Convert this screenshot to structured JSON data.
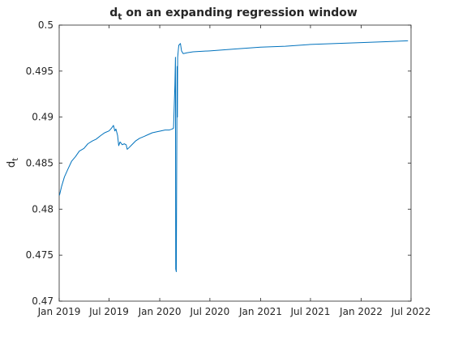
{
  "chart_data": {
    "type": "line",
    "title": "d",
    "title_subscript": "t",
    "title_rest": " on an expanding regression window",
    "xlabel": "",
    "ylabel": "d",
    "ylabel_subscript": "t",
    "ylim": [
      0.47,
      0.5
    ],
    "xlim": [
      "2019-01-01",
      "2022-07-01"
    ],
    "x_ticks": [
      {
        "date": "2019-01-01",
        "label": "Jan 2019"
      },
      {
        "date": "2019-07-01",
        "label": "Jul 2019"
      },
      {
        "date": "2020-01-01",
        "label": "Jan 2020"
      },
      {
        "date": "2020-07-01",
        "label": "Jul 2020"
      },
      {
        "date": "2021-01-01",
        "label": "Jan 2021"
      },
      {
        "date": "2021-07-01",
        "label": "Jul 2021"
      },
      {
        "date": "2022-01-01",
        "label": "Jan 2022"
      },
      {
        "date": "2022-07-01",
        "label": "Jul 2022"
      }
    ],
    "y_ticks": [
      {
        "value": 0.47,
        "label": "0.47"
      },
      {
        "value": 0.475,
        "label": "0.475"
      },
      {
        "value": 0.48,
        "label": "0.48"
      },
      {
        "value": 0.485,
        "label": "0.485"
      },
      {
        "value": 0.49,
        "label": "0.49"
      },
      {
        "value": 0.495,
        "label": "0.495"
      },
      {
        "value": 0.5,
        "label": "0.5"
      }
    ],
    "series": [
      {
        "name": "d_t",
        "color": "#0072bd",
        "points": [
          [
            "2019-01-02",
            0.4815
          ],
          [
            "2019-01-10",
            0.4825
          ],
          [
            "2019-01-20",
            0.4835
          ],
          [
            "2019-02-01",
            0.4843
          ],
          [
            "2019-02-15",
            0.4852
          ],
          [
            "2019-03-01",
            0.4857
          ],
          [
            "2019-03-15",
            0.4863
          ],
          [
            "2019-04-01",
            0.4866
          ],
          [
            "2019-04-15",
            0.4871
          ],
          [
            "2019-05-01",
            0.4874
          ],
          [
            "2019-05-15",
            0.4876
          ],
          [
            "2019-06-01",
            0.488
          ],
          [
            "2019-06-15",
            0.4883
          ],
          [
            "2019-07-01",
            0.4885
          ],
          [
            "2019-07-10",
            0.4888
          ],
          [
            "2019-07-17",
            0.4891
          ],
          [
            "2019-07-22",
            0.4885
          ],
          [
            "2019-07-26",
            0.4887
          ],
          [
            "2019-08-01",
            0.488
          ],
          [
            "2019-08-05",
            0.4869
          ],
          [
            "2019-08-10",
            0.4873
          ],
          [
            "2019-08-18",
            0.487
          ],
          [
            "2019-08-25",
            0.4871
          ],
          [
            "2019-09-01",
            0.487
          ],
          [
            "2019-09-05",
            0.4865
          ],
          [
            "2019-09-12",
            0.4867
          ],
          [
            "2019-09-22",
            0.487
          ],
          [
            "2019-10-05",
            0.4874
          ],
          [
            "2019-10-20",
            0.4877
          ],
          [
            "2019-11-05",
            0.4879
          ],
          [
            "2019-11-20",
            0.4881
          ],
          [
            "2019-12-05",
            0.4883
          ],
          [
            "2019-12-20",
            0.4884
          ],
          [
            "2020-01-05",
            0.4885
          ],
          [
            "2020-01-20",
            0.4886
          ],
          [
            "2020-02-05",
            0.4886
          ],
          [
            "2020-02-15",
            0.4887
          ],
          [
            "2020-02-20",
            0.4888
          ],
          [
            "2020-02-25",
            0.4935
          ],
          [
            "2020-02-27",
            0.4965
          ],
          [
            "2020-02-28",
            0.4735
          ],
          [
            "2020-03-01",
            0.4732
          ],
          [
            "2020-03-04",
            0.4955
          ],
          [
            "2020-03-05",
            0.49
          ],
          [
            "2020-03-06",
            0.4965
          ],
          [
            "2020-03-10",
            0.4978
          ],
          [
            "2020-03-16",
            0.498
          ],
          [
            "2020-03-20",
            0.4972
          ],
          [
            "2020-03-26",
            0.4969
          ],
          [
            "2020-04-10",
            0.497
          ],
          [
            "2020-05-01",
            0.4971
          ],
          [
            "2020-07-01",
            0.4972
          ],
          [
            "2020-10-01",
            0.4974
          ],
          [
            "2021-01-01",
            0.4976
          ],
          [
            "2021-04-01",
            0.4977
          ],
          [
            "2021-07-01",
            0.4979
          ],
          [
            "2021-10-01",
            0.498
          ],
          [
            "2022-01-01",
            0.4981
          ],
          [
            "2022-04-01",
            0.4982
          ],
          [
            "2022-06-20",
            0.4983
          ]
        ]
      }
    ]
  }
}
